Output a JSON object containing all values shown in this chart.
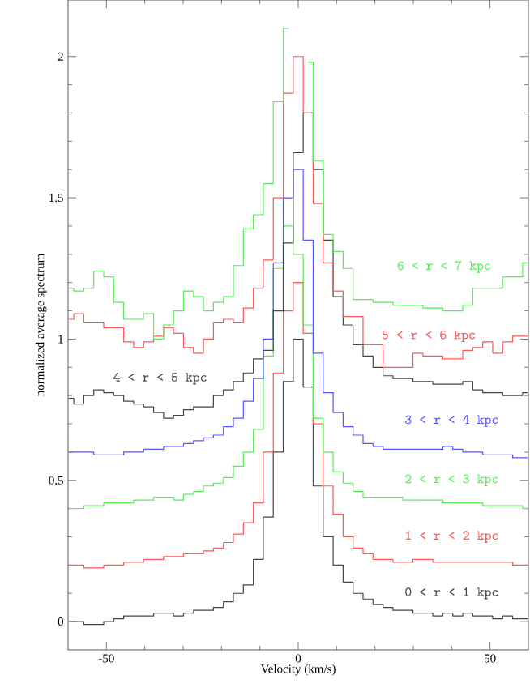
{
  "chart_data": {
    "type": "step",
    "xlabel": "Velocity (km/s)",
    "ylabel": "normalized average spectrum",
    "xlim": [
      -60,
      60
    ],
    "ylim": [
      -0.1,
      2.2
    ],
    "xticks": [
      -50,
      0,
      50
    ],
    "yticks": [
      0,
      0.5,
      1,
      1.5,
      2
    ],
    "x": [
      -59.8,
      -57.2,
      -54.6,
      -52,
      -49.4,
      -46.8,
      -44.2,
      -41.6,
      -39,
      -36.4,
      -33.8,
      -31.2,
      -28.6,
      -26,
      -23.4,
      -20.8,
      -18.2,
      -15.6,
      -13,
      -10.4,
      -7.8,
      -5.2,
      -2.6,
      0,
      2.6,
      5.2,
      7.8,
      10.4,
      13,
      15.6,
      18.2,
      20.8,
      23.4,
      26,
      28.6,
      31.2,
      33.8,
      36.4,
      39,
      41.6,
      44.2,
      46.8,
      49.4,
      52,
      54.6,
      57.2,
      59.8
    ],
    "series": [
      {
        "name": "0 < r < 1 kpc",
        "color": "#444444",
        "values": [
          0.0,
          0.0,
          -0.01,
          -0.01,
          0.0,
          0.01,
          0.02,
          0.02,
          0.02,
          0.03,
          0.03,
          0.02,
          0.03,
          0.04,
          0.04,
          0.05,
          0.07,
          0.1,
          0.13,
          0.22,
          0.37,
          0.6,
          0.85,
          1.0,
          0.83,
          0.48,
          0.3,
          0.2,
          0.14,
          0.1,
          0.08,
          0.06,
          0.05,
          0.04,
          0.04,
          0.03,
          0.03,
          0.02,
          0.03,
          0.02,
          0.03,
          0.02,
          0.02,
          0.01,
          0.02,
          0.01,
          0.01
        ]
      },
      {
        "name": "1 < r < 2 kpc",
        "color": "#ff5555",
        "values": [
          0.2,
          0.2,
          0.19,
          0.19,
          0.2,
          0.2,
          0.21,
          0.21,
          0.22,
          0.22,
          0.23,
          0.23,
          0.24,
          0.24,
          0.25,
          0.26,
          0.28,
          0.31,
          0.35,
          0.42,
          0.6,
          0.88,
          1.1,
          1.2,
          1.02,
          0.7,
          0.48,
          0.38,
          0.3,
          0.26,
          0.24,
          0.22,
          0.22,
          0.21,
          0.21,
          0.22,
          0.22,
          0.21,
          0.21,
          0.21,
          0.21,
          0.21,
          0.21,
          0.21,
          0.21,
          0.2,
          0.2
        ]
      },
      {
        "name": "2 < r < 3 kpc",
        "color": "#55ee55",
        "values": [
          0.4,
          0.4,
          0.41,
          0.41,
          0.42,
          0.42,
          0.42,
          0.43,
          0.43,
          0.44,
          0.44,
          0.43,
          0.45,
          0.46,
          0.48,
          0.49,
          0.51,
          0.55,
          0.6,
          0.68,
          0.94,
          1.25,
          1.4,
          1.3,
          1.05,
          0.72,
          0.6,
          0.53,
          0.49,
          0.46,
          0.44,
          0.44,
          0.44,
          0.44,
          0.43,
          0.43,
          0.43,
          0.43,
          0.42,
          0.42,
          0.42,
          0.42,
          0.41,
          0.41,
          0.41,
          0.41,
          0.4
        ]
      },
      {
        "name": "3 < r < 4 kpc",
        "color": "#5555ff",
        "values": [
          0.6,
          0.6,
          0.6,
          0.59,
          0.59,
          0.59,
          0.6,
          0.6,
          0.61,
          0.61,
          0.62,
          0.62,
          0.63,
          0.64,
          0.65,
          0.66,
          0.69,
          0.72,
          0.78,
          0.86,
          1.0,
          1.27,
          1.5,
          1.6,
          1.35,
          0.95,
          0.81,
          0.74,
          0.69,
          0.66,
          0.63,
          0.62,
          0.61,
          0.61,
          0.61,
          0.61,
          0.61,
          0.61,
          0.62,
          0.61,
          0.6,
          0.6,
          0.59,
          0.59,
          0.59,
          0.58,
          0.58
        ]
      },
      {
        "name": "4 < r < 5 kpc",
        "color": "#444444",
        "values": [
          0.79,
          0.77,
          0.8,
          0.82,
          0.81,
          0.8,
          0.78,
          0.77,
          0.76,
          0.74,
          0.72,
          0.73,
          0.75,
          0.76,
          0.76,
          0.8,
          0.82,
          0.85,
          0.88,
          0.93,
          0.96,
          1.1,
          1.34,
          1.66,
          1.8,
          1.6,
          1.35,
          1.15,
          1.05,
          0.98,
          0.94,
          0.9,
          0.87,
          0.86,
          0.86,
          0.85,
          0.85,
          0.84,
          0.84,
          0.84,
          0.85,
          0.82,
          0.81,
          0.81,
          0.8,
          0.8,
          0.81
        ]
      },
      {
        "name": "5 < r < 6 kpc",
        "color": "#ff5555",
        "values": [
          1.07,
          1.09,
          1.06,
          1.06,
          1.04,
          1.04,
          0.99,
          0.97,
          0.99,
          1.01,
          1.04,
          1.02,
          0.97,
          0.95,
          1.0,
          1.06,
          1.07,
          1.06,
          1.11,
          1.18,
          1.28,
          1.5,
          1.87,
          2.0,
          1.8,
          1.48,
          1.27,
          1.17,
          1.08,
          1.08,
          0.98,
          0.98,
          0.9,
          0.9,
          0.9,
          0.95,
          0.94,
          0.94,
          0.93,
          0.93,
          0.96,
          0.97,
          0.99,
          0.95,
          0.99,
          1.01,
          1.01
        ]
      },
      {
        "name": "6 < r < 7 kpc",
        "color": "#55ee55",
        "values": [
          1.18,
          1.17,
          1.18,
          1.24,
          1.22,
          1.13,
          1.07,
          1.07,
          1.09,
          1.0,
          1.05,
          1.1,
          1.17,
          1.15,
          1.1,
          1.13,
          1.15,
          1.26,
          1.39,
          1.44,
          1.55,
          1.84,
          2.1,
          null,
          1.98,
          1.63,
          1.37,
          1.31,
          1.25,
          1.14,
          1.14,
          1.13,
          1.13,
          1.12,
          1.12,
          1.12,
          1.11,
          1.11,
          1.1,
          1.1,
          1.12,
          1.18,
          1.18,
          1.18,
          1.22,
          1.22,
          1.27
        ]
      }
    ]
  }
}
